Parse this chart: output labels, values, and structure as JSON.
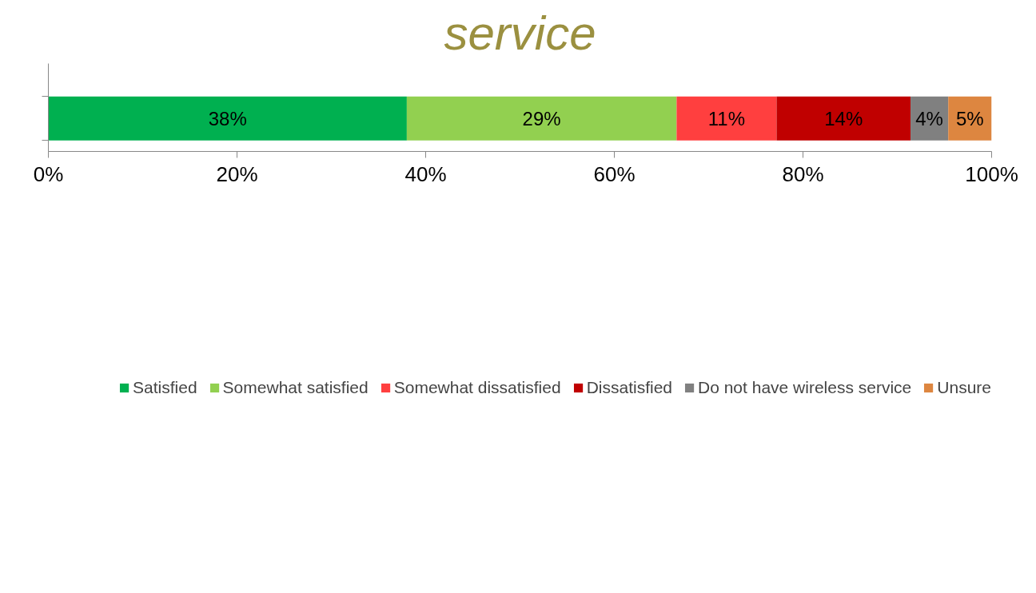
{
  "chart_data": {
    "type": "bar",
    "orientation": "horizontal",
    "stacked": true,
    "title": "service",
    "categories": [
      null
    ],
    "series": [
      {
        "name": "Satisfied",
        "color": "#00b050",
        "values": [
          38
        ],
        "value_labels": [
          "38%"
        ]
      },
      {
        "name": "Somewhat satisfied",
        "color": "#92d050",
        "values": [
          28.6
        ],
        "value_labels": [
          "29%"
        ]
      },
      {
        "name": "Somewhat dissatisfied",
        "color": "#ff3f3f",
        "values": [
          10.6
        ],
        "value_labels": [
          "11%"
        ]
      },
      {
        "name": "Dissatisfied",
        "color": "#c00000",
        "values": [
          14.2
        ],
        "value_labels": [
          "14%"
        ]
      },
      {
        "name": "Do not have wireless service",
        "color": "#808080",
        "values": [
          4
        ],
        "value_labels": [
          "4%"
        ]
      },
      {
        "name": "Unsure",
        "color": "#dd8640",
        "values": [
          4.6
        ],
        "value_labels": [
          "5%"
        ]
      }
    ],
    "xlim": [
      0,
      100
    ],
    "xticks": [
      {
        "value": 0,
        "label": "0%"
      },
      {
        "value": 20,
        "label": "20%"
      },
      {
        "value": 40,
        "label": "40%"
      },
      {
        "value": 60,
        "label": "60%"
      },
      {
        "value": 80,
        "label": "80%"
      },
      {
        "value": 100,
        "label": "100%"
      }
    ],
    "tick_labels": "x",
    "grid": false,
    "legend": "bottom"
  }
}
